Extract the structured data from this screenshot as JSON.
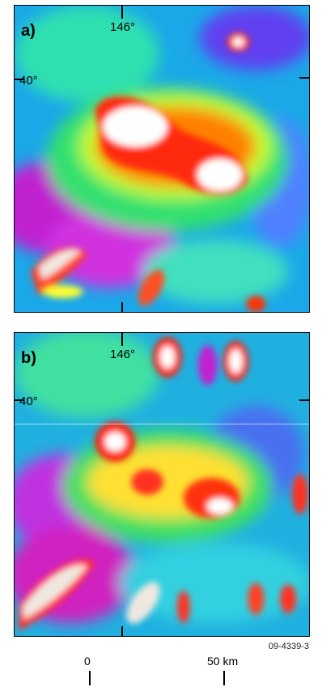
{
  "panels": [
    {
      "label": "a)",
      "longitude_label": "146°",
      "latitude_label": "40°"
    },
    {
      "label": "b)",
      "longitude_label": "146°",
      "latitude_label": "40°"
    }
  ],
  "figure_id": "09-4339-3",
  "scale": {
    "zero": "0",
    "max": "50 km"
  },
  "colors": {
    "low": "#c000c0",
    "mid_low": "#3060ff",
    "mid": "#00d0d0",
    "mid_high": "#40ff40",
    "high": "#ffff00",
    "very_high": "#ff2000",
    "peak": "#ffffff"
  }
}
